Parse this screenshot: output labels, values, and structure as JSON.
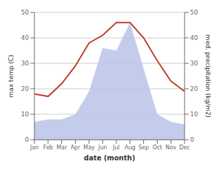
{
  "chart_data": {
    "type": "line",
    "xlabel": "date (month)",
    "ylabel": "max temp (C)",
    "y2label": "med. precipitation (kg/m2)",
    "categories": [
      "Jan",
      "Feb",
      "Mar",
      "Apr",
      "May",
      "Jun",
      "Jul",
      "Aug",
      "Sep",
      "Oct",
      "Nov",
      "Dec"
    ],
    "series": [
      {
        "type": "area",
        "axis": "y2",
        "color": "#b8c4e8",
        "values": [
          7,
          8,
          8,
          10,
          19,
          36,
          35,
          46,
          28,
          10,
          7,
          6
        ]
      },
      {
        "type": "line",
        "color": "#c0392b",
        "values": [
          18,
          17,
          22,
          29,
          38,
          41,
          46,
          46,
          40,
          31,
          23,
          19
        ]
      }
    ],
    "ylim": [
      0,
      50
    ],
    "yticks": [
      0,
      10,
      20,
      30,
      40,
      50
    ],
    "y2lim": [
      0,
      50
    ],
    "y2ticks": [
      0,
      10,
      20,
      30,
      40,
      50
    ],
    "grid": true
  }
}
